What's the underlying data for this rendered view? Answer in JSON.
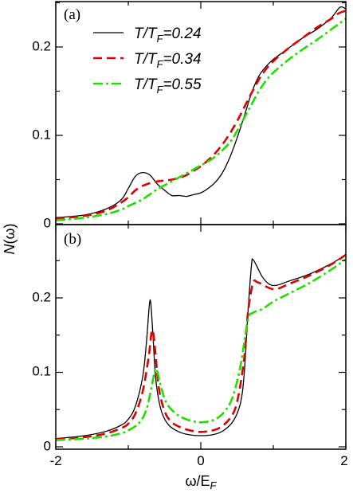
{
  "chart_data": [
    {
      "type": "line",
      "panel_label": "(a)",
      "xlim": [
        -2,
        2
      ],
      "ylim": [
        0,
        0.25
      ],
      "xticks": [
        "-2",
        "0",
        "2"
      ],
      "yticks": [
        "0",
        "0.1",
        "0.2"
      ],
      "ylabel": "N(ω)",
      "legend": {
        "placement": "top-left"
      },
      "series": [
        {
          "name": "T/T_F=0.24",
          "color": "#000000",
          "style": "solid",
          "points": [
            [
              -2,
              0.007
            ],
            [
              -1.6,
              0.01
            ],
            [
              -1.3,
              0.017
            ],
            [
              -1.1,
              0.027
            ],
            [
              -1,
              0.04
            ],
            [
              -0.9,
              0.054
            ],
            [
              -0.8,
              0.058
            ],
            [
              -0.7,
              0.055
            ],
            [
              -0.6,
              0.045
            ],
            [
              -0.5,
              0.038
            ],
            [
              -0.4,
              0.032
            ],
            [
              -0.3,
              0.032
            ],
            [
              -0.2,
              0.031
            ],
            [
              -0.1,
              0.033
            ],
            [
              0,
              0.035
            ],
            [
              0.1,
              0.04
            ],
            [
              0.2,
              0.047
            ],
            [
              0.3,
              0.058
            ],
            [
              0.4,
              0.075
            ],
            [
              0.5,
              0.097
            ],
            [
              0.6,
              0.122
            ],
            [
              0.7,
              0.148
            ],
            [
              0.8,
              0.167
            ],
            [
              0.9,
              0.178
            ],
            [
              1,
              0.186
            ],
            [
              1.2,
              0.198
            ],
            [
              1.4,
              0.21
            ],
            [
              1.6,
              0.22
            ],
            [
              1.8,
              0.233
            ],
            [
              1.92,
              0.245
            ],
            [
              2,
              0.243
            ]
          ]
        },
        {
          "name": "T/T_F=0.34",
          "color": "#e00000",
          "style": "dashed",
          "points": [
            [
              -2,
              0.006
            ],
            [
              -1.6,
              0.009
            ],
            [
              -1.3,
              0.015
            ],
            [
              -1.1,
              0.024
            ],
            [
              -1,
              0.03
            ],
            [
              -0.9,
              0.038
            ],
            [
              -0.8,
              0.043
            ],
            [
              -0.7,
              0.046
            ],
            [
              -0.6,
              0.048
            ],
            [
              -0.5,
              0.049
            ],
            [
              -0.4,
              0.05
            ],
            [
              -0.3,
              0.052
            ],
            [
              -0.2,
              0.055
            ],
            [
              -0.1,
              0.06
            ],
            [
              0,
              0.065
            ],
            [
              0.1,
              0.072
            ],
            [
              0.2,
              0.08
            ],
            [
              0.3,
              0.09
            ],
            [
              0.4,
              0.102
            ],
            [
              0.5,
              0.116
            ],
            [
              0.6,
              0.132
            ],
            [
              0.7,
              0.148
            ],
            [
              0.8,
              0.163
            ],
            [
              0.9,
              0.175
            ],
            [
              1,
              0.184
            ],
            [
              1.2,
              0.198
            ],
            [
              1.4,
              0.21
            ],
            [
              1.6,
              0.222
            ],
            [
              1.8,
              0.232
            ],
            [
              1.9,
              0.238
            ],
            [
              2,
              0.241
            ]
          ]
        },
        {
          "name": "T/T_F=0.55",
          "color": "#22dd00",
          "style": "dash-dot",
          "points": [
            [
              -2,
              0.004
            ],
            [
              -1.6,
              0.007
            ],
            [
              -1.3,
              0.011
            ],
            [
              -1.1,
              0.016
            ],
            [
              -1,
              0.02
            ],
            [
              -0.8,
              0.028
            ],
            [
              -0.6,
              0.039
            ],
            [
              -0.4,
              0.048
            ],
            [
              -0.2,
              0.057
            ],
            [
              0,
              0.066
            ],
            [
              0.2,
              0.076
            ],
            [
              0.4,
              0.092
            ],
            [
              0.5,
              0.105
            ],
            [
              0.6,
              0.12
            ],
            [
              0.7,
              0.135
            ],
            [
              0.8,
              0.15
            ],
            [
              0.9,
              0.162
            ],
            [
              1,
              0.171
            ],
            [
              1.2,
              0.185
            ],
            [
              1.4,
              0.197
            ],
            [
              1.6,
              0.208
            ],
            [
              1.8,
              0.22
            ],
            [
              2,
              0.232
            ]
          ]
        }
      ]
    },
    {
      "type": "line",
      "panel_label": "(b)",
      "xlim": [
        -2,
        2
      ],
      "ylim": [
        0,
        0.27
      ],
      "xticks": [
        "-2",
        "0",
        "2"
      ],
      "yticks": [
        "0",
        "0.1",
        "0.2"
      ],
      "xlabel": "ω/E_F",
      "series": [
        {
          "name": "T/T_F=0.24",
          "color": "#000000",
          "style": "solid",
          "points": [
            [
              -2,
              0.011
            ],
            [
              -1.6,
              0.015
            ],
            [
              -1.3,
              0.021
            ],
            [
              -1.1,
              0.029
            ],
            [
              -1,
              0.037
            ],
            [
              -0.9,
              0.055
            ],
            [
              -0.8,
              0.095
            ],
            [
              -0.75,
              0.14
            ],
            [
              -0.71,
              0.19
            ],
            [
              -0.69,
              0.193
            ],
            [
              -0.66,
              0.15
            ],
            [
              -0.62,
              0.09
            ],
            [
              -0.55,
              0.05
            ],
            [
              -0.45,
              0.03
            ],
            [
              -0.3,
              0.02
            ],
            [
              -0.15,
              0.016
            ],
            [
              0,
              0.015
            ],
            [
              0.15,
              0.016
            ],
            [
              0.3,
              0.021
            ],
            [
              0.45,
              0.035
            ],
            [
              0.55,
              0.06
            ],
            [
              0.6,
              0.1
            ],
            [
              0.65,
              0.18
            ],
            [
              0.7,
              0.245
            ],
            [
              0.72,
              0.251
            ],
            [
              0.76,
              0.245
            ],
            [
              0.85,
              0.228
            ],
            [
              0.95,
              0.218
            ],
            [
              1.05,
              0.217
            ],
            [
              1.2,
              0.222
            ],
            [
              1.5,
              0.232
            ],
            [
              1.8,
              0.246
            ],
            [
              2,
              0.258
            ]
          ]
        },
        {
          "name": "T/T_F=0.34",
          "color": "#e00000",
          "style": "dashed",
          "points": [
            [
              -2,
              0.01
            ],
            [
              -1.6,
              0.013
            ],
            [
              -1.3,
              0.018
            ],
            [
              -1.1,
              0.025
            ],
            [
              -1,
              0.031
            ],
            [
              -0.9,
              0.045
            ],
            [
              -0.8,
              0.075
            ],
            [
              -0.72,
              0.12
            ],
            [
              -0.67,
              0.157
            ],
            [
              -0.63,
              0.13
            ],
            [
              -0.58,
              0.08
            ],
            [
              -0.5,
              0.048
            ],
            [
              -0.4,
              0.033
            ],
            [
              -0.25,
              0.025
            ],
            [
              -0.1,
              0.021
            ],
            [
              0,
              0.02
            ],
            [
              0.1,
              0.021
            ],
            [
              0.25,
              0.025
            ],
            [
              0.4,
              0.038
            ],
            [
              0.5,
              0.06
            ],
            [
              0.6,
              0.12
            ],
            [
              0.65,
              0.18
            ],
            [
              0.72,
              0.22
            ],
            [
              0.78,
              0.221
            ],
            [
              0.85,
              0.218
            ],
            [
              0.95,
              0.213
            ],
            [
              1.05,
              0.212
            ],
            [
              1.2,
              0.218
            ],
            [
              1.5,
              0.23
            ],
            [
              1.8,
              0.245
            ],
            [
              2,
              0.258
            ]
          ]
        },
        {
          "name": "T/T_F=0.55",
          "color": "#22dd00",
          "style": "dash-dot",
          "points": [
            [
              -2,
              0.009
            ],
            [
              -1.6,
              0.011
            ],
            [
              -1.3,
              0.014
            ],
            [
              -1.1,
              0.018
            ],
            [
              -1,
              0.022
            ],
            [
              -0.85,
              0.032
            ],
            [
              -0.75,
              0.05
            ],
            [
              -0.68,
              0.08
            ],
            [
              -0.62,
              0.105
            ],
            [
              -0.56,
              0.085
            ],
            [
              -0.48,
              0.06
            ],
            [
              -0.35,
              0.045
            ],
            [
              -0.2,
              0.037
            ],
            [
              0,
              0.033
            ],
            [
              0.2,
              0.037
            ],
            [
              0.35,
              0.05
            ],
            [
              0.45,
              0.07
            ],
            [
              0.55,
              0.11
            ],
            [
              0.65,
              0.17
            ],
            [
              0.72,
              0.18
            ],
            [
              0.85,
              0.185
            ],
            [
              1,
              0.195
            ],
            [
              1.2,
              0.205
            ],
            [
              1.5,
              0.22
            ],
            [
              1.8,
              0.238
            ],
            [
              2,
              0.252
            ]
          ]
        }
      ]
    }
  ]
}
